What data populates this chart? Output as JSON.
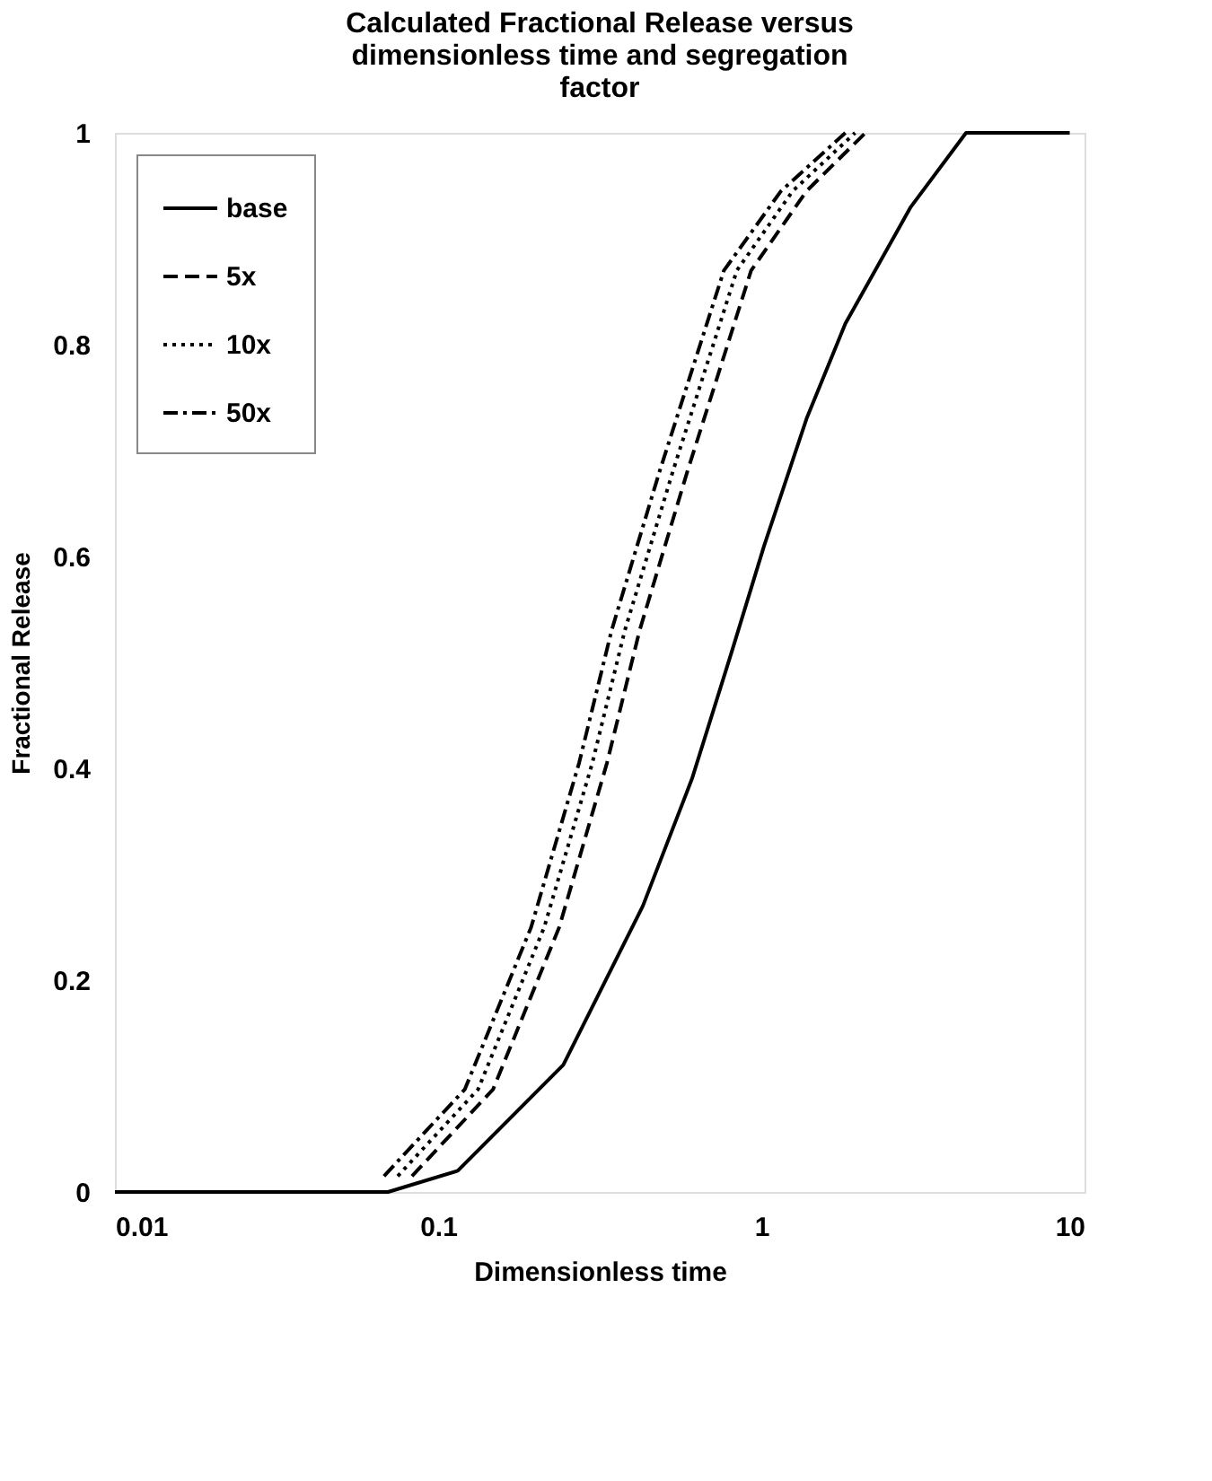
{
  "chart_data": {
    "type": "line",
    "title": "Calculated Fractional Release versus dimensionless time and segregation factor",
    "xlabel": "Dimensionless time",
    "ylabel": "Fractional Release",
    "log": "x",
    "xlim": [
      0.01,
      10
    ],
    "xticks": [
      0.01,
      0.1,
      1,
      10
    ],
    "ylim": [
      0,
      1
    ],
    "yticks": [
      0,
      0.2,
      0.4,
      0.6,
      0.8,
      1
    ],
    "grid": false,
    "legend": "top left",
    "marker": "none",
    "series": [
      {
        "name": "base",
        "color": "#000000",
        "line_style": "solid",
        "x": [
          0.01,
          0.07,
          0.115,
          0.244,
          0.43,
          0.61,
          0.81,
          1.02,
          1.38,
          1.82,
          2.9,
          4.3,
          9
        ],
        "values": [
          0,
          0,
          0.02,
          0.12,
          0.27,
          0.39,
          0.51,
          0.61,
          0.73,
          0.82,
          0.93,
          1,
          1
        ]
      },
      {
        "name": "5x",
        "color": "#000000",
        "line_style": "dashed",
        "x": [
          0.083,
          0.148,
          0.237,
          0.333,
          0.42,
          0.59,
          0.93,
          1.38,
          2.1
        ],
        "values": [
          0.015,
          0.097,
          0.25,
          0.405,
          0.53,
          0.68,
          0.87,
          0.945,
          1
        ]
      },
      {
        "name": "10x",
        "color": "#000000",
        "line_style": "dotted",
        "x": [
          0.075,
          0.133,
          0.213,
          0.3,
          0.378,
          0.532,
          0.84,
          1.25,
          1.95
        ],
        "values": [
          0.015,
          0.097,
          0.25,
          0.405,
          0.53,
          0.68,
          0.87,
          0.945,
          1
        ]
      },
      {
        "name": "50x",
        "color": "#000000",
        "line_style": "dashdot",
        "x": [
          0.068,
          0.121,
          0.194,
          0.273,
          0.344,
          0.484,
          0.766,
          1.15,
          1.82
        ],
        "values": [
          0.015,
          0.097,
          0.25,
          0.405,
          0.53,
          0.68,
          0.87,
          0.945,
          1
        ]
      }
    ]
  }
}
